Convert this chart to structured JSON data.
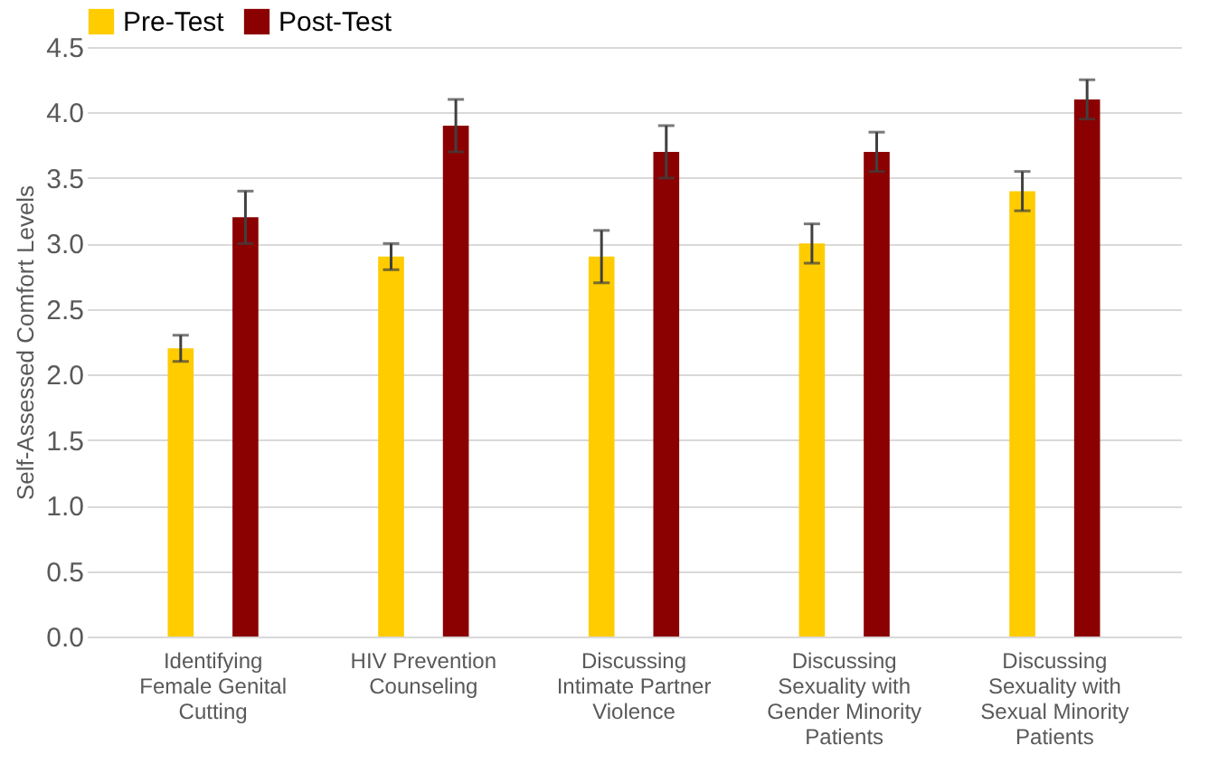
{
  "chart_data": {
    "type": "bar",
    "ylabel": "Self-Assessed Comfort Levels",
    "categories": [
      "Identifying Female Genital Cutting",
      "HIV Prevention Counseling",
      "Discussing Intimate Partner Violence",
      "Discussing Sexuality with Gender Minority Patients",
      "Discussing Sexuality with Sexual Minority Patients"
    ],
    "series": [
      {
        "name": "Pre-Test",
        "color": "#ffcc00",
        "values": [
          2.2,
          2.9,
          2.9,
          3.0,
          3.4
        ],
        "errors": [
          0.1,
          0.1,
          0.2,
          0.15,
          0.15
        ]
      },
      {
        "name": "Post-Test",
        "color": "#8b0000",
        "values": [
          3.2,
          3.9,
          3.7,
          3.7,
          4.1
        ],
        "errors": [
          0.2,
          0.2,
          0.2,
          0.15,
          0.15
        ]
      }
    ],
    "ylim": [
      0,
      4.5
    ],
    "yticks": [
      {
        "value": 0,
        "label": "0.0"
      },
      {
        "value": 0.5,
        "label": "0.5"
      },
      {
        "value": 1,
        "label": "1.0"
      },
      {
        "value": 1.5,
        "label": "1.5"
      },
      {
        "value": 2,
        "label": "2.0"
      },
      {
        "value": 2.5,
        "label": "2.5"
      },
      {
        "value": 3,
        "label": "3.0"
      },
      {
        "value": 3.5,
        "label": "3.5"
      },
      {
        "value": 4,
        "label": "4.0"
      },
      {
        "value": 4.5,
        "label": "4.5"
      }
    ],
    "grid": "y",
    "legend": "top"
  }
}
